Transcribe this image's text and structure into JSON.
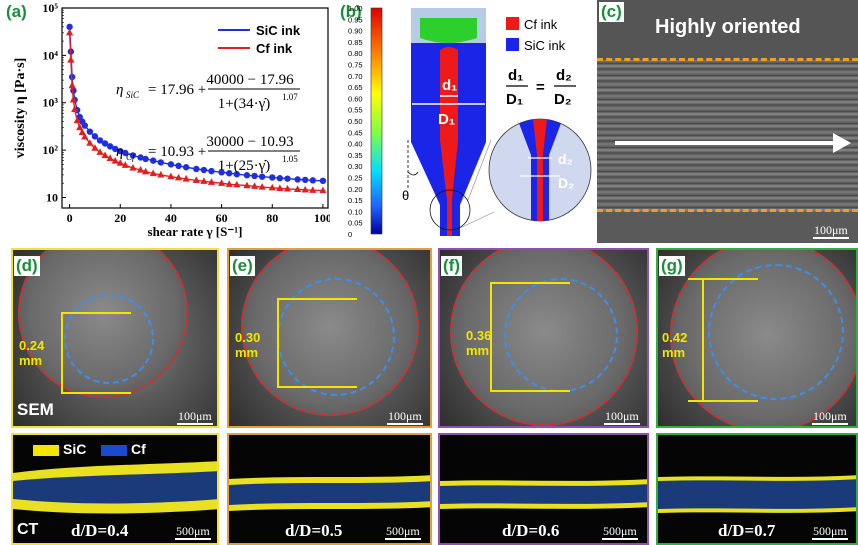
{
  "panels": {
    "a": {
      "label": "(a)",
      "ylabel": "viscosity η [Pa·s]",
      "xlabel": "shear rate γ [S⁻¹]",
      "yticks": [
        "10",
        "10²",
        "10³",
        "10⁴",
        "10⁵"
      ],
      "xticks": [
        "0",
        "20",
        "40",
        "60",
        "80",
        "100"
      ],
      "legend": [
        "SiC ink",
        "Cf ink"
      ],
      "eq1": {
        "lhs": "η",
        "sub": "SiC",
        "a": "17.96",
        "num": "40000 − 17.96",
        "den": "1+(34·γ̇)",
        "exp": "1.07"
      },
      "eq2": {
        "lhs": "η",
        "sub": "Cf",
        "a": "10.93",
        "num": "30000 − 10.93",
        "den": "1+(25·γ̇)",
        "exp": "1.05"
      }
    },
    "b": {
      "label": "(b)",
      "colorbar": [
        "1.00",
        "0.95",
        "0.90",
        "0.85",
        "0.80",
        "0.75",
        "0.70",
        "0.65",
        "0.60",
        "0.55",
        "0.50",
        "0.45",
        "0.40",
        "0.35",
        "0.30",
        "0.25",
        "0.20",
        "0.15",
        "0.10",
        "0.05",
        "0"
      ],
      "legend": [
        "Cf ink",
        "SiC ink"
      ],
      "d1": "d₁",
      "D1": "D₁",
      "d2": "d₂",
      "D2": "D₂",
      "theta": "θ",
      "frac_num_left": "d₁",
      "frac_den_left": "D₁",
      "eq": "=",
      "frac_num_right": "d₂",
      "frac_den_right": "D₂"
    },
    "c": {
      "label": "(c)",
      "title": "Highly oriented",
      "scale": "100μm"
    },
    "d": {
      "label": "(d)",
      "dim": "0.24\nmm",
      "scale": "100μm",
      "tag": "SEM"
    },
    "e": {
      "label": "(e)",
      "dim": "0.30\nmm",
      "scale": "100μm"
    },
    "f": {
      "label": "(f)",
      "dim": "0.36\nmm",
      "scale": "100μm"
    },
    "g": {
      "label": "(g)",
      "dim": "0.42\nmm",
      "scale": "100μm"
    }
  },
  "ct": {
    "legend": [
      "SiC",
      "Cf"
    ],
    "tag": "CT",
    "items": [
      {
        "ratio": "d/D=0.4",
        "scale": "500μm"
      },
      {
        "ratio": "d/D=0.5",
        "scale": "500μm"
      },
      {
        "ratio": "d/D=0.6",
        "scale": "500μm"
      },
      {
        "ratio": "d/D=0.7",
        "scale": "500μm"
      }
    ]
  },
  "colors": {
    "sic": "#1f2fe0",
    "cf": "#e02020",
    "label": "#1a8f3a",
    "yellow": "#f2e600",
    "red_dash": "#e02828",
    "blue_dash": "#3a8ff0"
  },
  "chart_data": {
    "type": "line",
    "xlabel": "shear rate γ [S⁻¹]",
    "ylabel": "viscosity η [Pa·s]",
    "yscale": "log",
    "xlim": [
      -3,
      102
    ],
    "ylim": [
      6,
      100000
    ],
    "series": [
      {
        "name": "SiC ink",
        "color": "#1f2fe0",
        "marker": "circle",
        "x": [
          0,
          0.5,
          1,
          1.5,
          2,
          3,
          4,
          5,
          6,
          8,
          10,
          12,
          14,
          16,
          18,
          20,
          22,
          25,
          28,
          30,
          33,
          36,
          40,
          43,
          46,
          50,
          53,
          56,
          60,
          63,
          66,
          70,
          73,
          76,
          80,
          83,
          86,
          90,
          93,
          96,
          100
        ],
        "y": [
          40000,
          12000,
          3500,
          1800,
          1150,
          700,
          500,
          400,
          330,
          245,
          195,
          160,
          138,
          120,
          106,
          95,
          87,
          77,
          70,
          65,
          60,
          55,
          50,
          46.5,
          43.5,
          40,
          38,
          36,
          34,
          32.5,
          31,
          29.5,
          28.5,
          27.5,
          26.5,
          25.5,
          25,
          24,
          23.5,
          23,
          22.5
        ]
      },
      {
        "name": "Cf ink",
        "color": "#e02020",
        "marker": "triangle",
        "x": [
          0,
          0.5,
          1,
          1.5,
          2,
          3,
          4,
          5,
          6,
          8,
          10,
          12,
          14,
          16,
          18,
          20,
          22,
          25,
          28,
          30,
          33,
          36,
          40,
          43,
          46,
          50,
          53,
          56,
          60,
          63,
          66,
          70,
          73,
          76,
          80,
          83,
          86,
          90,
          93,
          96,
          100
        ],
        "y": [
          30000,
          8000,
          2300,
          1150,
          720,
          420,
          300,
          235,
          190,
          140,
          110,
          90,
          77,
          67,
          59,
          53,
          48,
          42,
          38,
          35,
          32,
          30,
          27.5,
          26,
          24.5,
          23,
          22,
          21,
          20,
          19,
          18.5,
          17.8,
          17.2,
          16.6,
          16,
          15.6,
          15.2,
          14.8,
          14.5,
          14.2,
          14
        ]
      }
    ]
  }
}
